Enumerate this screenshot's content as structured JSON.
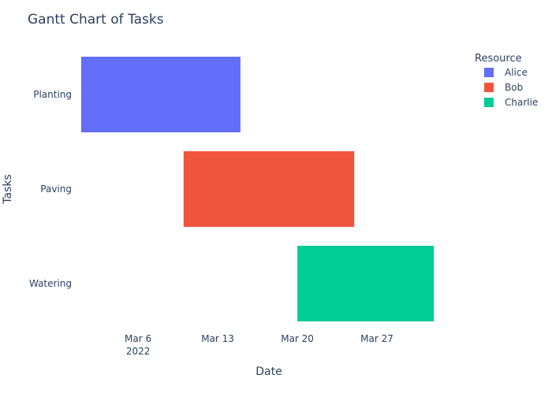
{
  "chart_data": {
    "type": "gantt",
    "title": "Gantt Chart of Tasks",
    "xlabel": "Date",
    "ylabel": "Tasks",
    "x_ticks": [
      {
        "date": "2022-03-06",
        "label": "Mar 6",
        "sublabel": "2022"
      },
      {
        "date": "2022-03-13",
        "label": "Mar 13",
        "sublabel": ""
      },
      {
        "date": "2022-03-20",
        "label": "Mar 20",
        "sublabel": ""
      },
      {
        "date": "2022-03-27",
        "label": "Mar 27",
        "sublabel": ""
      }
    ],
    "xlim": [
      "2022-03-01",
      "2022-04-03"
    ],
    "categories": [
      "Planting",
      "Paving",
      "Watering"
    ],
    "tasks": [
      {
        "task": "Planting",
        "start": "2022-03-01",
        "finish": "2022-03-15",
        "resource": "Alice"
      },
      {
        "task": "Paving",
        "start": "2022-03-10",
        "finish": "2022-03-25",
        "resource": "Bob"
      },
      {
        "task": "Watering",
        "start": "2022-03-20",
        "finish": "2022-04-01",
        "resource": "Charlie"
      }
    ],
    "legend": {
      "title": "Resource",
      "placement": "top-right",
      "items": [
        {
          "name": "Alice",
          "color": "#636efa"
        },
        {
          "name": "Bob",
          "color": "#ef553b"
        },
        {
          "name": "Charlie",
          "color": "#00cc96"
        }
      ]
    },
    "grid": false
  }
}
